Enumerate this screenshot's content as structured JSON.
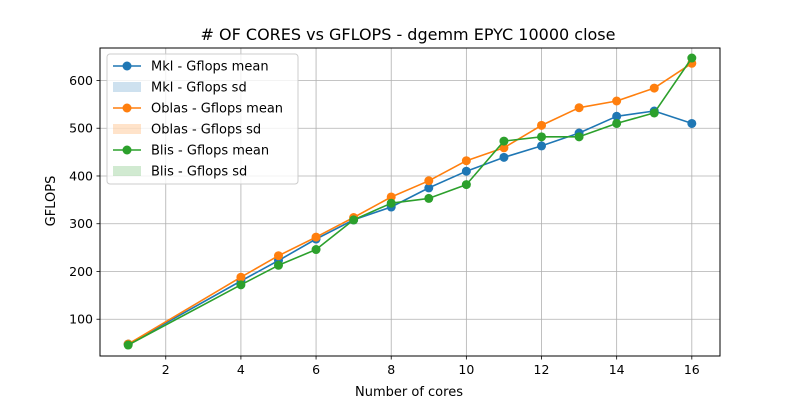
{
  "chart_data": {
    "type": "line",
    "title": "# OF CORES vs GFLOPS - dgemm  EPYC 10000 close",
    "xlabel": "Number of cores",
    "ylabel": "GFLOPS",
    "xlim": [
      0.25,
      16.75
    ],
    "ylim": [
      23,
      668
    ],
    "xticks": [
      2,
      4,
      6,
      8,
      10,
      12,
      14,
      16
    ],
    "yticks": [
      100,
      200,
      300,
      400,
      500,
      600
    ],
    "grid": true,
    "legend_position": "top-left",
    "x": [
      1,
      4,
      5,
      6,
      7,
      8,
      9,
      10,
      11,
      12,
      13,
      14,
      15,
      16
    ],
    "series": [
      {
        "name": "Mkl - Gflops mean",
        "color": "#1f77b4",
        "values": [
          48,
          180,
          223,
          268,
          308,
          335,
          375,
          410,
          439,
          463,
          490,
          525,
          536,
          510
        ]
      },
      {
        "name": "Oblas - Gflops mean",
        "color": "#ff7f0e",
        "values": [
          48,
          188,
          233,
          272,
          313,
          356,
          390,
          432,
          459,
          506,
          543,
          557,
          584,
          636
        ]
      },
      {
        "name": "Blis - Gflops mean",
        "color": "#2ca02c",
        "values": [
          46,
          172,
          213,
          246,
          308,
          343,
          353,
          382,
          473,
          482,
          482,
          510,
          532,
          647
        ]
      }
    ],
    "legend": [
      {
        "label": "Mkl - Gflops mean",
        "kind": "line",
        "color": "#1f77b4"
      },
      {
        "label": "Mkl - Gflops sd",
        "kind": "patch",
        "color": "#1f77b4"
      },
      {
        "label": "Oblas - Gflops mean",
        "kind": "line",
        "color": "#ff7f0e"
      },
      {
        "label": "Oblas - Gflops sd",
        "kind": "patch",
        "color": "#ff7f0e"
      },
      {
        "label": "Blis - Gflops mean",
        "kind": "line",
        "color": "#2ca02c"
      },
      {
        "label": "Blis - Gflops sd",
        "kind": "patch",
        "color": "#2ca02c"
      }
    ]
  }
}
